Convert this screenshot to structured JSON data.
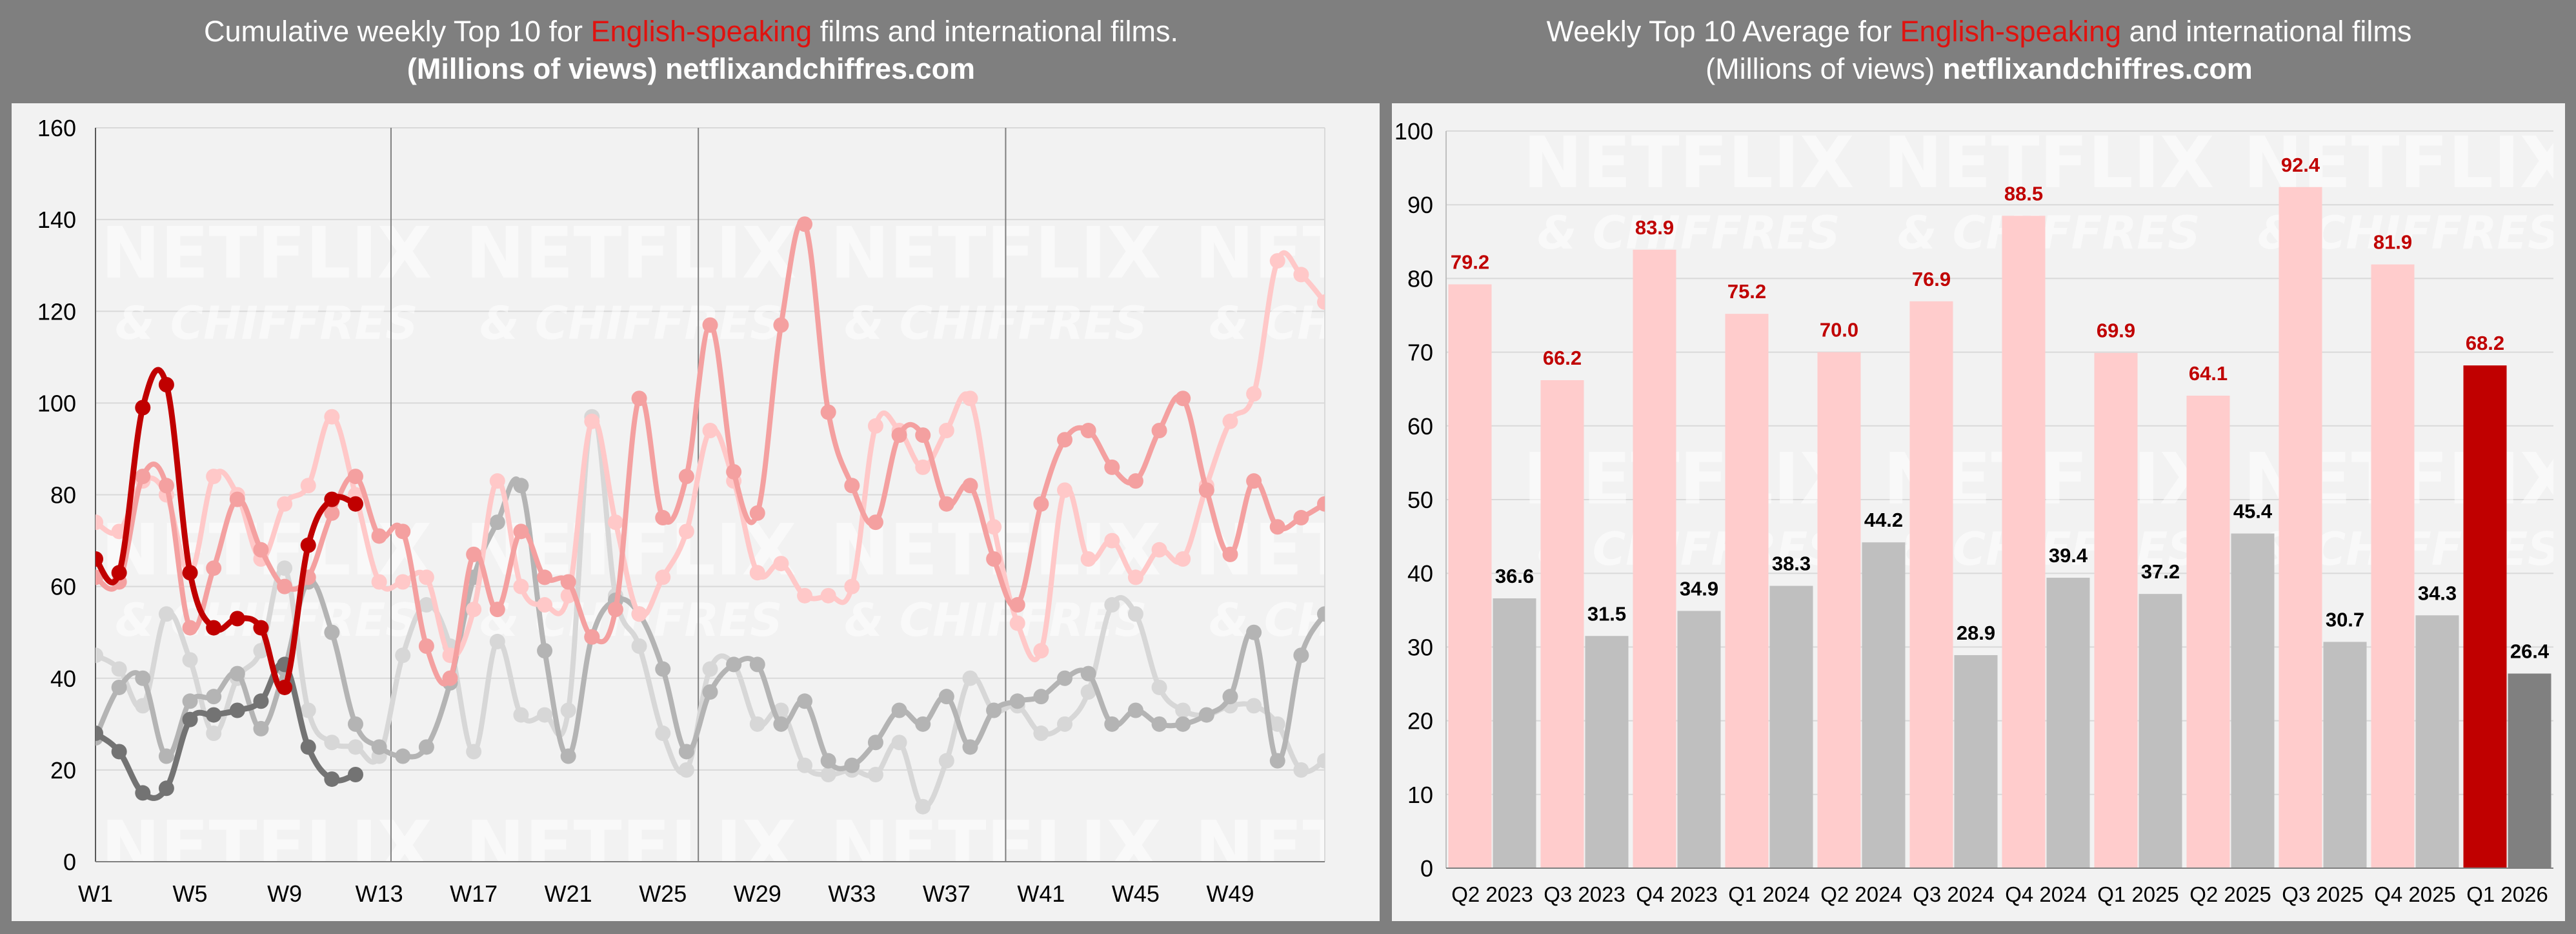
{
  "left_title": {
    "line1_pre": "Cumulative weekly Top 10 for ",
    "line1_hl": "English-speaking",
    "line1_post": " films and international films.",
    "line2_pre": "(Millions of views) ",
    "line2_site": "netflixandchiffres.com"
  },
  "right_title": {
    "line1_pre": "Weekly Top 10 Average for ",
    "line1_hl": "English-speaking",
    "line1_post": " and international films",
    "line2_pre": "(Millions of views) ",
    "line2_site": "netflixandchiffres.com"
  },
  "watermark": {
    "line1": "NETFLIX",
    "line2": "& CHIFFRES"
  },
  "colors": {
    "english_2026": "#c00000",
    "english_2025": "#f4a0a0",
    "english_2024": "#ffc8c8",
    "intl_2026": "#737373",
    "intl_2025": "#b4b4b4",
    "intl_2024": "#d7d7d7",
    "bar_english": "#ffcccc",
    "bar_intl": "#bfbfbf",
    "bar_english_current": "#c00000",
    "bar_intl_current": "#808080",
    "bar_label_english": "#c00000",
    "bar_label_intl": "#000000"
  },
  "chart_data": [
    {
      "type": "line",
      "title": "Cumulative weekly Top 10 for English-speaking films and international films.",
      "subtitle": "(Millions of views) netflixandchiffres.com",
      "ylim": [
        0,
        160
      ],
      "y_ticks": [
        0,
        20,
        40,
        60,
        80,
        100,
        120,
        140,
        160
      ],
      "x_ticks": [
        "W1",
        "W5",
        "W9",
        "W13",
        "W17",
        "W21",
        "W25",
        "W29",
        "W33",
        "W37",
        "W41",
        "W45",
        "W49"
      ],
      "x_range": [
        1,
        53
      ],
      "vertical_lines_at_week": [
        13.5,
        26.5,
        39.5
      ],
      "grid": true,
      "legend": "none",
      "series": [
        {
          "color_key": "english_2024",
          "x": [
            1,
            2,
            3,
            4,
            5,
            6,
            7,
            8,
            9,
            10,
            11,
            12,
            13,
            14,
            15,
            16,
            17,
            18,
            19,
            20,
            21,
            22,
            23,
            24,
            25,
            26,
            27,
            28,
            29,
            30,
            31,
            32,
            33,
            34,
            35,
            36,
            37,
            38,
            39,
            40,
            41,
            42,
            43,
            44,
            45,
            46,
            47,
            48,
            49,
            50,
            51,
            52,
            53
          ],
          "values": [
            74,
            72,
            83,
            80,
            63,
            84,
            80,
            66,
            78,
            82,
            97,
            80,
            61,
            61,
            62,
            45,
            55,
            83,
            60,
            56,
            58,
            96,
            74,
            54,
            62,
            72,
            94,
            83,
            63,
            65,
            58,
            58,
            60,
            95,
            94,
            86,
            94,
            101,
            73,
            52,
            46,
            81,
            66,
            70,
            62,
            68,
            66,
            82,
            96,
            102,
            131,
            128,
            122
          ]
        },
        {
          "color_key": "english_2025",
          "x": [
            1,
            2,
            3,
            4,
            5,
            6,
            7,
            8,
            9,
            10,
            11,
            12,
            13,
            14,
            15,
            16,
            17,
            18,
            19,
            20,
            21,
            22,
            23,
            24,
            25,
            26,
            27,
            28,
            29,
            30,
            31,
            32,
            33,
            34,
            35,
            36,
            37,
            38,
            39,
            40,
            41,
            42,
            43,
            44,
            45,
            46,
            47,
            48,
            49,
            50,
            51,
            52,
            53
          ],
          "values": [
            62,
            61,
            84,
            82,
            51,
            64,
            79,
            68,
            60,
            62,
            76,
            84,
            71,
            72,
            47,
            40,
            67,
            55,
            72,
            62,
            61,
            49,
            55,
            101,
            75,
            84,
            117,
            85,
            76,
            117,
            139,
            98,
            82,
            74,
            93,
            93,
            78,
            82,
            66,
            56,
            78,
            92,
            94,
            86,
            83,
            94,
            101,
            81,
            67,
            83,
            73,
            75,
            78
          ]
        },
        {
          "color_key": "english_2026",
          "x": [
            1,
            2,
            3,
            4,
            5,
            6,
            7,
            8,
            9,
            10,
            11,
            12
          ],
          "values": [
            66,
            63,
            99,
            104,
            63,
            51,
            53,
            51,
            38,
            69,
            79,
            78
          ]
        },
        {
          "color_key": "intl_2024",
          "x": [
            1,
            2,
            3,
            4,
            5,
            6,
            7,
            8,
            9,
            10,
            11,
            12,
            13,
            14,
            15,
            16,
            17,
            18,
            19,
            20,
            21,
            22,
            23,
            24,
            25,
            26,
            27,
            28,
            29,
            30,
            31,
            32,
            33,
            34,
            35,
            36,
            37,
            38,
            39,
            40,
            41,
            42,
            43,
            44,
            45,
            46,
            47,
            48,
            49,
            50,
            51,
            52,
            53
          ],
          "values": [
            45,
            42,
            34,
            54,
            44,
            28,
            40,
            46,
            64,
            33,
            26,
            25,
            23,
            45,
            56,
            47,
            24,
            48,
            32,
            32,
            33,
            97,
            58,
            47,
            28,
            20,
            42,
            43,
            30,
            33,
            21,
            19,
            20,
            19,
            26,
            12,
            22,
            40,
            33,
            34,
            28,
            30,
            37,
            56,
            54,
            38,
            33,
            32,
            34,
            34,
            30,
            20,
            22
          ]
        },
        {
          "color_key": "intl_2025",
          "x": [
            1,
            2,
            3,
            4,
            5,
            6,
            7,
            8,
            9,
            10,
            11,
            12,
            13,
            14,
            15,
            16,
            17,
            18,
            19,
            20,
            21,
            22,
            23,
            24,
            25,
            26,
            27,
            28,
            29,
            30,
            31,
            32,
            33,
            34,
            35,
            36,
            37,
            38,
            39,
            40,
            41,
            42,
            43,
            44,
            45,
            46,
            47,
            48,
            49,
            50,
            51,
            52,
            53
          ],
          "values": [
            27,
            38,
            40,
            23,
            35,
            36,
            41,
            29,
            42,
            61,
            50,
            30,
            25,
            23,
            25,
            39,
            62,
            74,
            82,
            46,
            23,
            49,
            57,
            54,
            42,
            24,
            37,
            43,
            43,
            30,
            35,
            22,
            21,
            26,
            33,
            30,
            36,
            25,
            33,
            35,
            36,
            40,
            41,
            30,
            33,
            30,
            30,
            32,
            36,
            50,
            22,
            45,
            54
          ]
        },
        {
          "color_key": "intl_2026",
          "x": [
            1,
            2,
            3,
            4,
            5,
            6,
            7,
            8,
            9,
            10,
            11,
            12
          ],
          "values": [
            28,
            24,
            15,
            16,
            31,
            32,
            33,
            35,
            43,
            25,
            18,
            19
          ]
        }
      ]
    },
    {
      "type": "bar",
      "title": "Weekly Top 10 Average for English-speaking and international films",
      "subtitle": "(Millions of views) netflixandchiffres.com",
      "categories": [
        "Q2 2023",
        "Q3 2023",
        "Q4 2023",
        "Q1 2024",
        "Q2 2024",
        "Q3 2024",
        "Q4 2024",
        "Q1 2025",
        "Q2 2025",
        "Q3 2025",
        "Q4 2025",
        "Q1 2026"
      ],
      "ylim": [
        0,
        100
      ],
      "y_ticks": [
        0,
        10,
        20,
        30,
        40,
        50,
        60,
        70,
        80,
        90,
        100
      ],
      "grid": true,
      "legend": "none",
      "series": [
        {
          "values": [
            79.2,
            66.2,
            83.9,
            75.2,
            70.0,
            76.9,
            88.5,
            69.9,
            64.1,
            92.4,
            81.9,
            68.2
          ],
          "labels": [
            "79.2",
            "66.2",
            "83.9",
            "75.2",
            "70.0",
            "76.9",
            "88.5",
            "69.9",
            "64.1",
            "92.4",
            "81.9",
            "68.2"
          ]
        },
        {
          "values": [
            36.6,
            31.5,
            34.9,
            38.3,
            44.2,
            28.9,
            39.4,
            37.2,
            45.4,
            30.7,
            34.3,
            26.4
          ],
          "labels": [
            "36.6",
            "31.5",
            "34.9",
            "38.3",
            "44.2",
            "28.9",
            "39.4",
            "37.2",
            "45.4",
            "30.7",
            "34.3",
            "26.4"
          ]
        }
      ]
    }
  ]
}
